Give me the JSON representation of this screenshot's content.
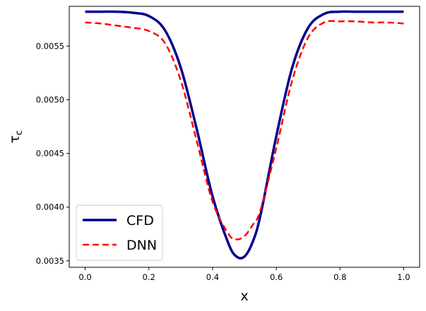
{
  "chart_data": {
    "type": "line",
    "title": "",
    "xlabel": "x",
    "ylabel": "τ_c",
    "xlim": [
      -0.05,
      1.05
    ],
    "ylim": [
      0.00344,
      0.00587
    ],
    "xticks": [
      0.0,
      0.2,
      0.4,
      0.6,
      0.8,
      1.0
    ],
    "xtick_labels": [
      "0.0",
      "0.2",
      "0.4",
      "0.6",
      "0.8",
      "1.0"
    ],
    "yticks": [
      0.0035,
      0.004,
      0.0045,
      0.005,
      0.0055
    ],
    "ytick_labels": [
      "0.0035",
      "0.0040",
      "0.0045",
      "0.0050",
      "0.0055"
    ],
    "grid": false,
    "legend_position": "lower-left",
    "series": [
      {
        "name": "CFD",
        "color": "#00008b",
        "style": "solid",
        "x": [
          0.0,
          0.05,
          0.1,
          0.15,
          0.2,
          0.25,
          0.3,
          0.35,
          0.4,
          0.45,
          0.475,
          0.5,
          0.525,
          0.55,
          0.6,
          0.65,
          0.7,
          0.75,
          0.8,
          0.85,
          0.9,
          0.95,
          1.0
        ],
        "y": [
          0.00582,
          0.00582,
          0.00582,
          0.00581,
          0.00578,
          0.00565,
          0.0053,
          0.00473,
          0.0041,
          0.00366,
          0.00354,
          0.00354,
          0.00367,
          0.00392,
          0.00466,
          0.0053,
          0.00567,
          0.0058,
          0.00582,
          0.00582,
          0.00582,
          0.00582,
          0.00582
        ]
      },
      {
        "name": "DNN",
        "color": "#ff0000",
        "style": "dashed",
        "x": [
          0.0,
          0.05,
          0.1,
          0.15,
          0.2,
          0.25,
          0.3,
          0.35,
          0.4,
          0.45,
          0.475,
          0.5,
          0.525,
          0.55,
          0.6,
          0.65,
          0.7,
          0.75,
          0.8,
          0.85,
          0.9,
          0.95,
          1.0
        ],
        "y": [
          0.00572,
          0.00571,
          0.00569,
          0.00567,
          0.00564,
          0.00553,
          0.00518,
          0.00462,
          0.00405,
          0.00375,
          0.0037,
          0.00373,
          0.00383,
          0.00397,
          0.00455,
          0.00518,
          0.00558,
          0.00572,
          0.00573,
          0.00573,
          0.00572,
          0.00572,
          0.00571
        ]
      }
    ]
  }
}
